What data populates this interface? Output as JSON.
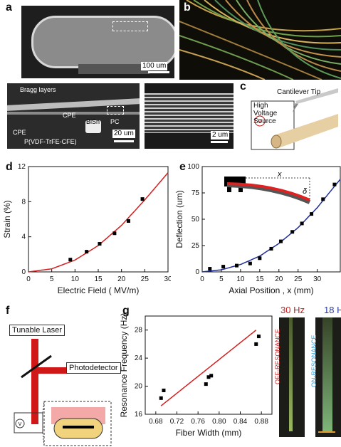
{
  "panels": {
    "a": {
      "label": "a",
      "scalebars": {
        "top": "100 um",
        "mid": "20 um",
        "right": "2 um"
      },
      "labels": {
        "bragg": "Bragg layers",
        "cpe1": "CPE",
        "cpe2": "CPE",
        "bisn": "BiSn",
        "pc": "PC",
        "pvdf": "P(VDF-TrFE-CFE)"
      }
    },
    "b": {
      "label": "b"
    },
    "c": {
      "label": "c",
      "source": "High Voltage Source",
      "cantilever": "Cantilever Tip",
      "v": "V"
    },
    "d": {
      "label": "d"
    },
    "e": {
      "label": "e",
      "x_symbol": "x",
      "delta_symbol": "δ"
    },
    "f": {
      "label": "f",
      "laser": "Tunable Laser",
      "detector": "Photodetector",
      "v": "V"
    },
    "g": {
      "label": "g",
      "img1_title": "30 Hz",
      "img2_title": "18 H",
      "img1_side": "OFF-RESONANCE",
      "img2_side": "ON-RESONANCE"
    }
  },
  "chart_data": [
    {
      "panel": "d",
      "type": "scatter",
      "xlabel": "Electric Field ( MV/m)",
      "ylabel": "Strain (%)",
      "xlim": [
        0,
        30
      ],
      "ylim": [
        0,
        12
      ],
      "xticks": [
        0,
        5,
        10,
        15,
        20,
        25,
        30
      ],
      "yticks": [
        0,
        4,
        8,
        12
      ],
      "points": {
        "x": [
          9,
          12.5,
          15.3,
          18.5,
          21.5,
          24.5
        ],
        "y": [
          1.4,
          2.3,
          3.2,
          4.4,
          5.8,
          8.3
        ]
      },
      "fit": {
        "x": [
          0,
          5,
          10,
          15,
          20,
          25,
          30
        ],
        "y": [
          0.0,
          0.35,
          1.35,
          3.0,
          5.3,
          8.2,
          11.3
        ]
      },
      "grid": false
    },
    {
      "panel": "e",
      "type": "scatter",
      "xlabel": "Axial Position , x (mm)",
      "ylabel": "Deflection (um)",
      "xlim": [
        0,
        36
      ],
      "ylim": [
        0,
        100
      ],
      "xticks": [
        0,
        5,
        10,
        15,
        20,
        25,
        30
      ],
      "yticks": [
        0,
        25,
        50,
        75,
        100
      ],
      "points": {
        "x": [
          2,
          5.5,
          9,
          12.5,
          15,
          18,
          20.5,
          23.5,
          26,
          28.5,
          31.5,
          34.5
        ],
        "y": [
          3,
          5,
          6,
          8,
          13,
          22,
          29,
          38,
          46,
          55,
          69,
          83
        ]
      },
      "fit": {
        "x": [
          0,
          5,
          10,
          15,
          20,
          25,
          30,
          36
        ],
        "y": [
          0,
          2,
          7,
          15,
          27,
          42,
          61,
          88
        ]
      },
      "grid": false
    },
    {
      "panel": "g",
      "type": "scatter",
      "xlabel": "Fiber Width (mm)",
      "ylabel": "Resonance Frequency (Hz)",
      "xlim": [
        0.66,
        0.9
      ],
      "ylim": [
        16,
        30
      ],
      "xticks": [
        "0.68",
        "0.72",
        "0.76",
        "0.80",
        "0.84",
        "0.88"
      ],
      "yticks": [
        16,
        20,
        24,
        28
      ],
      "points": {
        "x": [
          0.69,
          0.695,
          0.775,
          0.78,
          0.785,
          0.87,
          0.875
        ],
        "y": [
          18.3,
          19.4,
          20.3,
          21.3,
          21.5,
          26.0,
          27.1
        ]
      },
      "fit": {
        "x": [
          0.69,
          0.87
        ],
        "y": [
          17.2,
          28.0
        ]
      },
      "grid": false
    }
  ]
}
